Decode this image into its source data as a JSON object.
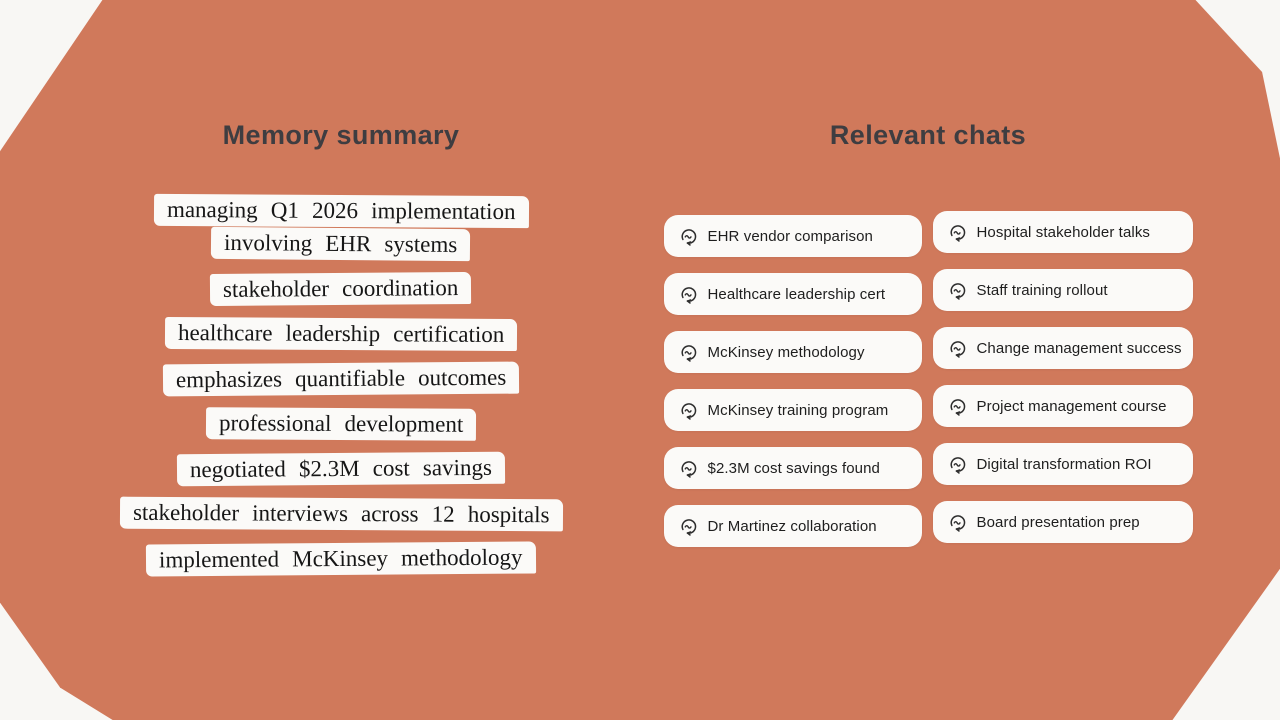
{
  "colors": {
    "background_orange": "#d0795b",
    "canvas_offwhite": "#f8f7f4",
    "card_white": "#fbfaf8",
    "title_gray": "#3e3d41"
  },
  "memory": {
    "title": "Memory summary",
    "highlights": [
      {
        "lines": [
          "managing Q1 2026 implementation",
          "involving EHR systems"
        ]
      },
      {
        "lines": [
          "stakeholder coordination"
        ]
      },
      {
        "lines": [
          "healthcare leadership certification"
        ]
      },
      {
        "lines": [
          "emphasizes quantifiable outcomes"
        ]
      },
      {
        "lines": [
          "professional development"
        ]
      },
      {
        "lines": [
          "negotiated $2.3M cost savings"
        ]
      },
      {
        "lines": [
          "stakeholder interviews across 12 hospitals"
        ]
      },
      {
        "lines": [
          "implemented McKinsey methodology"
        ]
      }
    ]
  },
  "chats": {
    "title": "Relevant chats",
    "icon": "chat-history-icon",
    "left": [
      "EHR vendor comparison",
      "Healthcare leadership cert",
      "McKinsey methodology",
      "McKinsey training program",
      "$2.3M cost savings found",
      "Dr Martinez collaboration"
    ],
    "right": [
      "Hospital stakeholder talks",
      "Staff training rollout",
      "Change management success",
      "Project management course",
      "Digital transformation ROI",
      "Board presentation prep"
    ]
  }
}
